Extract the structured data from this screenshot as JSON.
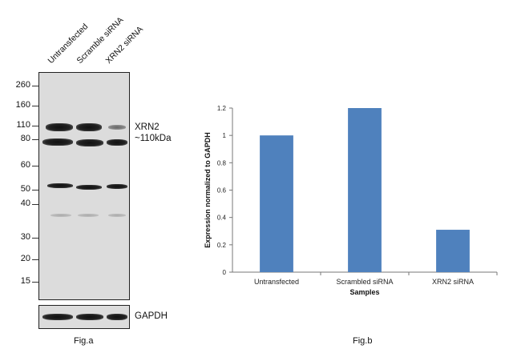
{
  "blot": {
    "lanes": [
      "Untransfected",
      "Scramble siRNA",
      "XRN2 siRNA"
    ],
    "markers": [
      "260",
      "160",
      "110",
      "80",
      "60",
      "50",
      "40",
      "30",
      "20",
      "15"
    ],
    "target_label_line1": "XRN2",
    "target_label_line2": "~110kDa",
    "loading_control": "GAPDH",
    "caption": "Fig.a"
  },
  "figure_b": {
    "caption": "Fig.b"
  },
  "chart_data": {
    "type": "bar",
    "categories": [
      "Untransfected",
      "Scrambled siRNA",
      "XRN2 siRNA"
    ],
    "values": [
      1.0,
      1.2,
      0.31
    ],
    "title": "",
    "xlabel": "Samples",
    "ylabel": "Expression normalized to GAPDH",
    "ylim": [
      0,
      1.2
    ],
    "yticks": [
      "0",
      "0.2",
      "0.4",
      "0.6",
      "0.8",
      "1",
      "1.2"
    ],
    "bar_color": "#4f81bd",
    "grid": false,
    "legend": "none"
  }
}
